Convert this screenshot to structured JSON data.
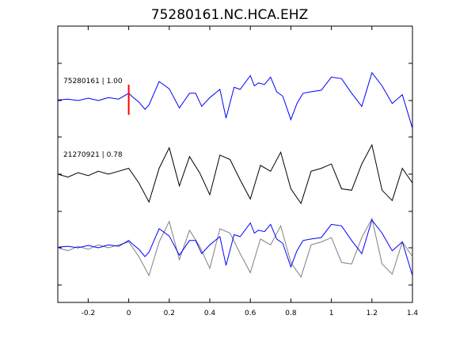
{
  "chart_data": {
    "type": "line",
    "title": "75280161.NC.HCA.EHZ",
    "xlabel": "",
    "ylabel": "",
    "xlim": [
      -0.35,
      1.4
    ],
    "x_ticks": [
      -0.2,
      0,
      0.2,
      0.4,
      0.6,
      0.8,
      1,
      1.2,
      1.4
    ],
    "x_tick_labels": [
      "-0.2",
      "0",
      "0.2",
      "0.4",
      "0.6",
      "0.8",
      "1",
      "1.2",
      "1.4"
    ],
    "grid": false,
    "pick_time": 0,
    "colors": {
      "target": "#0000ff",
      "template": "#000000",
      "template_overlay": "#808080",
      "pick": "#ff0000"
    },
    "traces": [
      {
        "label": "75280161 | 1.00",
        "color": "#0000ff",
        "x": [
          -0.35,
          -0.3,
          -0.25,
          -0.2,
          -0.15,
          -0.1,
          -0.05,
          0,
          0.02,
          0.05,
          0.08,
          0.1,
          0.15,
          0.2,
          0.25,
          0.3,
          0.33,
          0.36,
          0.4,
          0.45,
          0.48,
          0.52,
          0.55,
          0.6,
          0.62,
          0.64,
          0.67,
          0.7,
          0.73,
          0.76,
          0.8,
          0.83,
          0.86,
          0.9,
          0.95,
          1.0,
          1.05,
          1.1,
          1.15,
          1.2,
          1.25,
          1.3,
          1.35,
          1.4
        ],
        "y": [
          0.02,
          0.05,
          0,
          0.08,
          0,
          0.1,
          0.05,
          0.25,
          0.12,
          -0.05,
          -0.3,
          -0.15,
          0.65,
          0.4,
          -0.25,
          0.25,
          0.25,
          -0.2,
          0.1,
          0.38,
          -0.6,
          0.45,
          0.38,
          0.85,
          0.5,
          0.6,
          0.55,
          0.8,
          0.3,
          0.15,
          -0.65,
          -0.1,
          0.25,
          0.3,
          0.35,
          0.8,
          0.75,
          0.25,
          -0.2,
          0.95,
          0.5,
          -0.1,
          0.2,
          -0.95
        ]
      },
      {
        "label": "21270921 | 0.78",
        "color": "#000000",
        "x": [
          -0.35,
          -0.3,
          -0.25,
          -0.2,
          -0.15,
          -0.1,
          -0.05,
          0,
          0.05,
          0.1,
          0.15,
          0.2,
          0.25,
          0.3,
          0.35,
          0.4,
          0.45,
          0.5,
          0.55,
          0.6,
          0.65,
          0.7,
          0.75,
          0.8,
          0.85,
          0.9,
          0.95,
          1.0,
          1.05,
          1.1,
          1.15,
          1.2,
          1.25,
          1.3,
          1.35,
          1.4
        ],
        "y": [
          0,
          -0.1,
          0.05,
          -0.05,
          0.1,
          0,
          0.1,
          0.2,
          -0.3,
          -0.95,
          0.2,
          0.9,
          -0.4,
          0.6,
          0.05,
          -0.7,
          0.65,
          0.5,
          -0.2,
          -0.85,
          0.3,
          0.1,
          0.75,
          -0.5,
          -1.0,
          0.1,
          0.2,
          0.35,
          -0.5,
          -0.55,
          0.35,
          1.0,
          -0.55,
          -0.9,
          0.2,
          -0.3
        ]
      },
      {
        "label": "",
        "color": "#0000ff",
        "overlay_of": 1,
        "x": [
          -0.35,
          -0.3,
          -0.25,
          -0.2,
          -0.15,
          -0.1,
          -0.05,
          0,
          0.02,
          0.05,
          0.08,
          0.1,
          0.15,
          0.2,
          0.25,
          0.3,
          0.33,
          0.36,
          0.4,
          0.45,
          0.48,
          0.52,
          0.55,
          0.6,
          0.62,
          0.64,
          0.67,
          0.7,
          0.73,
          0.76,
          0.8,
          0.83,
          0.86,
          0.9,
          0.95,
          1.0,
          1.05,
          1.1,
          1.15,
          1.2,
          1.25,
          1.3,
          1.35,
          1.4
        ],
        "y": [
          0.02,
          0.05,
          0,
          0.08,
          0,
          0.1,
          0.05,
          0.25,
          0.12,
          -0.05,
          -0.3,
          -0.15,
          0.65,
          0.4,
          -0.25,
          0.25,
          0.25,
          -0.2,
          0.1,
          0.38,
          -0.6,
          0.45,
          0.38,
          0.85,
          0.5,
          0.6,
          0.55,
          0.8,
          0.3,
          0.15,
          -0.65,
          -0.1,
          0.25,
          0.3,
          0.35,
          0.8,
          0.75,
          0.25,
          -0.2,
          0.95,
          0.5,
          -0.1,
          0.2,
          -0.95
        ]
      }
    ]
  }
}
